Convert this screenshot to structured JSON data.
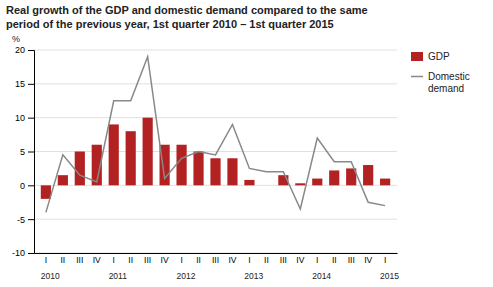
{
  "chart_data": {
    "type": "bar",
    "title": "Real growth of the GDP and domestic demand compared to the same\nperiod of the previous year, 1st quarter 2010 – 1st quarter 2015",
    "ylabel": "%",
    "categories": [
      "I",
      "II",
      "III",
      "IV",
      "I",
      "II",
      "III",
      "IV",
      "I",
      "II",
      "III",
      "IV",
      "I",
      "II",
      "III",
      "IV",
      "I",
      "II",
      "III",
      "IV",
      "I"
    ],
    "series": [
      {
        "name": "GDP",
        "type": "bar",
        "color": "#b22222",
        "values": [
          -2.0,
          1.5,
          5.0,
          6.0,
          9.0,
          8.0,
          10.0,
          6.0,
          6.0,
          5.0,
          4.0,
          4.0,
          0.8,
          0.0,
          1.5,
          0.3,
          1.0,
          2.2,
          2.5,
          3.0,
          1.0
        ]
      },
      {
        "name": "Domestic\ndemand",
        "type": "line",
        "color": "#888888",
        "values": [
          -4.0,
          4.5,
          1.5,
          0.5,
          12.5,
          12.5,
          19.0,
          1.0,
          4.0,
          5.0,
          4.5,
          9.0,
          2.5,
          2.0,
          2.0,
          -3.5,
          7.0,
          3.5,
          3.5,
          -2.5,
          -3.0
        ]
      }
    ],
    "annotations": [
      {
        "text": "2010",
        "category": 0
      },
      {
        "text": "2011",
        "category": 4
      },
      {
        "text": "2012",
        "category": 8
      },
      {
        "text": "2013",
        "category": 12
      },
      {
        "text": "2014",
        "category": 16
      },
      {
        "text": "2015",
        "category": 20
      }
    ],
    "ylim": [
      -10,
      20
    ],
    "yticks": [
      -10,
      -5,
      0,
      5,
      10,
      15,
      20
    ],
    "grid": true,
    "legend": "right"
  }
}
